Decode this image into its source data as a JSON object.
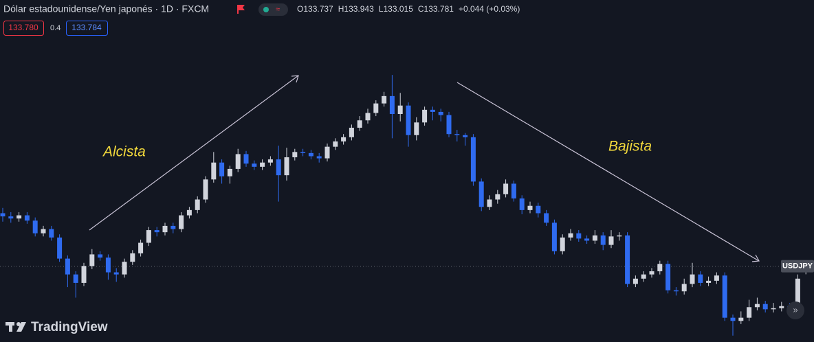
{
  "chart_data": {
    "type": "candlestick",
    "title": "Dólar estadounidense/Yen japonés · 1D · FXCM",
    "ylim": [
      126.6,
      159.0
    ],
    "ohlc_prefixes": [
      "O",
      "H",
      "L",
      "C"
    ],
    "change": "+0.044 (+0.03%)",
    "annotations": [
      "Alcista",
      "Bajista"
    ],
    "series": [
      {
        "name": "USDJPY",
        "up_color": "#d1d4dc",
        "down_color": "#2f6bf0",
        "open": [
          138.8,
          138.5,
          138.3,
          138.6,
          138.1,
          136.9,
          137.3,
          136.5,
          134.5,
          133.0,
          132.2,
          133.8,
          134.9,
          134.6,
          133.2,
          133.0,
          134.2,
          135.0,
          136.0,
          137.2,
          137.0,
          137.6,
          137.3,
          138.6,
          139.1,
          140.1,
          142.0,
          143.6,
          142.3,
          143.0,
          144.4,
          143.5,
          143.2,
          143.6,
          143.9,
          142.4,
          144.1,
          144.6,
          144.5,
          144.2,
          144.0,
          145.1,
          145.6,
          146.0,
          146.9,
          147.6,
          148.3,
          149.2,
          149.9,
          148.2,
          149.0,
          146.2,
          147.4,
          148.6,
          148.4,
          148.1,
          146.3,
          146.2,
          146.0,
          141.8,
          139.4,
          140.1,
          140.6,
          141.6,
          140.2,
          139.1,
          139.5,
          138.8,
          137.9,
          135.2,
          136.5,
          136.9,
          136.4,
          136.2,
          136.7,
          135.8,
          136.6,
          136.7,
          132.1,
          132.6,
          133.0,
          133.3,
          134.0,
          131.5,
          131.4,
          132.1,
          133.0,
          132.2,
          132.4,
          132.9,
          128.9,
          128.6,
          128.9,
          129.9,
          130.2,
          129.7,
          129.8,
          130.0,
          129.8,
          133.737
        ],
        "high": [
          139.3,
          138.9,
          138.9,
          138.9,
          138.4,
          137.6,
          137.6,
          136.8,
          134.8,
          133.3,
          134.1,
          135.4,
          135.2,
          134.9,
          133.6,
          134.5,
          135.3,
          136.3,
          137.5,
          137.5,
          137.9,
          137.9,
          138.9,
          139.4,
          140.4,
          142.3,
          144.6,
          143.9,
          143.3,
          144.9,
          144.7,
          143.8,
          143.9,
          144.2,
          145.2,
          145.0,
          144.9,
          144.9,
          144.8,
          144.5,
          145.4,
          145.9,
          146.3,
          147.2,
          148.0,
          148.7,
          149.5,
          150.3,
          151.9,
          150.2,
          149.3,
          147.9,
          148.9,
          148.9,
          148.7,
          148.4,
          146.7,
          146.4,
          146.3,
          142.1,
          140.5,
          141.0,
          142.0,
          141.9,
          140.5,
          139.9,
          139.8,
          139.1,
          138.2,
          136.8,
          137.3,
          137.2,
          136.7,
          137.2,
          137.0,
          137.2,
          137.0,
          137.0,
          132.9,
          133.3,
          133.6,
          134.3,
          134.3,
          131.8,
          132.6,
          134.1,
          133.3,
          132.8,
          133.2,
          133.2,
          129.2,
          129.5,
          130.6,
          130.8,
          130.5,
          130.3,
          130.4,
          130.3,
          133.0,
          133.943
        ],
        "low": [
          138.0,
          137.9,
          138.0,
          137.8,
          136.6,
          136.6,
          136.2,
          134.2,
          131.8,
          130.8,
          131.9,
          133.5,
          134.3,
          132.5,
          132.3,
          132.7,
          133.9,
          134.7,
          135.7,
          136.6,
          136.7,
          136.9,
          137.0,
          138.3,
          138.8,
          139.8,
          141.7,
          141.6,
          141.6,
          142.7,
          143.2,
          142.9,
          142.9,
          143.3,
          139.9,
          141.9,
          143.8,
          144.2,
          143.9,
          143.6,
          143.7,
          144.8,
          145.3,
          145.7,
          146.6,
          147.3,
          148.0,
          148.9,
          145.9,
          147.5,
          145.1,
          145.7,
          147.1,
          147.6,
          147.5,
          146.0,
          145.6,
          145.2,
          141.4,
          139.0,
          139.1,
          139.7,
          140.3,
          139.9,
          138.7,
          138.8,
          138.4,
          137.6,
          134.9,
          134.9,
          136.2,
          136.1,
          135.9,
          135.9,
          135.3,
          135.5,
          136.2,
          131.8,
          131.8,
          132.3,
          132.7,
          133.0,
          131.2,
          131.0,
          131.1,
          131.8,
          131.9,
          131.9,
          132.1,
          128.6,
          127.2,
          128.3,
          128.6,
          129.6,
          129.4,
          129.4,
          129.5,
          129.5,
          129.5,
          133.015
        ],
        "close": [
          138.5,
          138.3,
          138.6,
          138.1,
          136.9,
          137.3,
          136.5,
          134.5,
          133.0,
          132.2,
          133.8,
          134.9,
          134.6,
          133.2,
          133.0,
          134.2,
          135.0,
          136.0,
          137.2,
          137.0,
          137.6,
          137.3,
          138.6,
          139.1,
          140.1,
          142.0,
          143.6,
          142.3,
          143.0,
          144.4,
          143.5,
          143.2,
          143.6,
          143.9,
          142.4,
          144.1,
          144.6,
          144.5,
          144.2,
          144.0,
          145.1,
          145.6,
          146.0,
          146.9,
          147.6,
          148.3,
          149.2,
          149.9,
          148.2,
          149.0,
          146.2,
          147.4,
          148.6,
          148.4,
          148.1,
          146.3,
          146.2,
          146.0,
          141.8,
          139.4,
          140.1,
          140.6,
          141.6,
          140.2,
          139.1,
          139.5,
          138.8,
          137.9,
          135.2,
          136.5,
          136.9,
          136.4,
          136.2,
          136.7,
          135.8,
          136.6,
          136.7,
          132.1,
          132.6,
          133.0,
          133.3,
          134.0,
          131.5,
          131.4,
          132.1,
          133.0,
          132.2,
          132.4,
          132.9,
          128.9,
          128.6,
          128.9,
          129.9,
          130.2,
          129.7,
          129.8,
          130.0,
          129.8,
          132.6,
          133.781
        ]
      }
    ]
  },
  "quote": {
    "bid": "133.780",
    "spread": "0.4",
    "ask": "133.784"
  },
  "branding": "TradingView"
}
